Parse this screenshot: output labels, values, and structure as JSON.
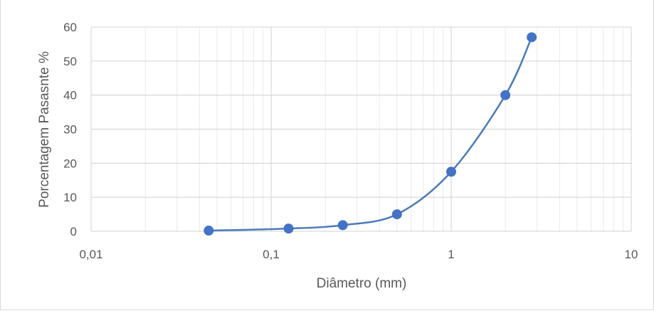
{
  "chart_data": {
    "type": "scatter",
    "title": "",
    "xlabel": "Diâmetro (mm)",
    "ylabel": "Porcentagem Pasasnte %",
    "x_scale": "log",
    "xlim": [
      0.01,
      10
    ],
    "ylim": [
      0,
      60
    ],
    "x_ticks": [
      "0,01",
      "0,1",
      "1",
      "10"
    ],
    "y_ticks": [
      "0",
      "10",
      "20",
      "30",
      "40",
      "50",
      "60"
    ],
    "grid": true,
    "legend": "none",
    "series": [
      {
        "x": [
          0.045,
          0.125,
          0.25,
          0.5,
          1.0,
          2.0,
          2.8
        ],
        "y": [
          0.2,
          0.8,
          1.8,
          5.0,
          17.5,
          40.0,
          57.0
        ]
      }
    ],
    "colors": {
      "series": "#4472c4",
      "line": "#4a7ab9",
      "grid_major": "#d0d0d0",
      "grid_minor": "#ebebeb",
      "text": "#595959"
    }
  }
}
